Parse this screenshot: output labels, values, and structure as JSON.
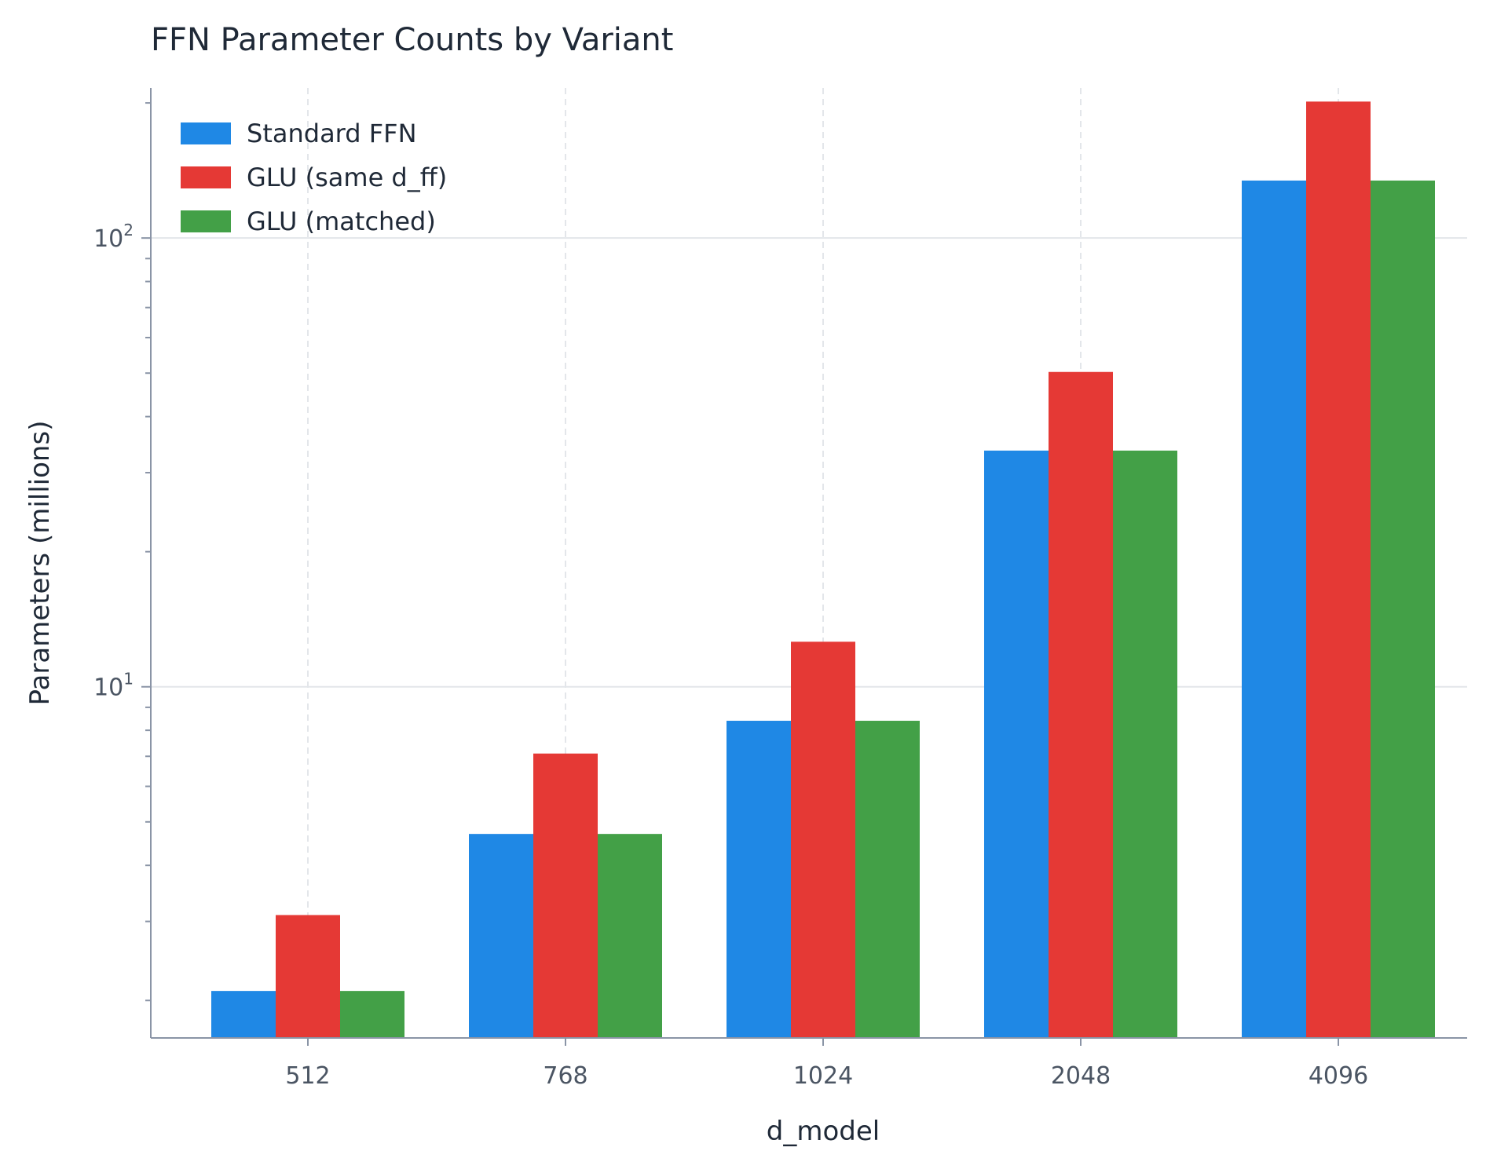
{
  "chart_data": {
    "type": "bar",
    "title": "FFN Parameter Counts by Variant",
    "xlabel": "d_model",
    "ylabel": "Parameters (millions)",
    "yscale": "log",
    "ylim": [
      1.65,
      216
    ],
    "grid": true,
    "legend_position": "top-left",
    "categories": [
      "512",
      "768",
      "1024",
      "2048",
      "4096"
    ],
    "y_ticks": [
      {
        "value": 10,
        "base": "10",
        "exp": "1"
      },
      {
        "value": 100,
        "base": "10",
        "exp": "2"
      }
    ],
    "series": [
      {
        "name": "Standard FFN",
        "color": "#1f88e5",
        "values": [
          2.1,
          4.7,
          8.4,
          33.6,
          134.3
        ]
      },
      {
        "name": "GLU (same d_ff)",
        "color": "#e53935",
        "values": [
          3.1,
          7.1,
          12.6,
          50.3,
          201.4
        ]
      },
      {
        "name": "GLU (matched)",
        "color": "#43a047",
        "values": [
          2.1,
          4.7,
          8.4,
          33.6,
          134.3
        ]
      }
    ]
  }
}
